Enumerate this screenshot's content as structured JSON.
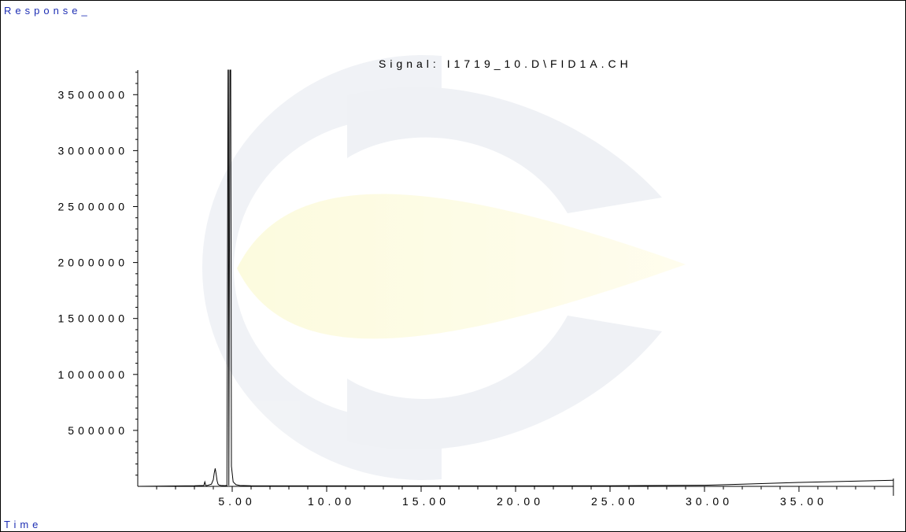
{
  "chart_data": {
    "type": "line",
    "title": "Signal: I1719_10.D\\FID1A.CH",
    "ylabel": "Response_",
    "xlabel": "Time",
    "xlim": [
      0.0,
      40.0
    ],
    "ylim": [
      0,
      3720000
    ],
    "y_ticks": [
      500000,
      1000000,
      1500000,
      2000000,
      2500000,
      3000000,
      3500000
    ],
    "y_tick_labels": [
      "500000",
      "1000000",
      "1500000",
      "2000000",
      "2500000",
      "3000000",
      "3500000"
    ],
    "x_ticks": [
      5,
      10,
      15,
      20,
      25,
      30,
      35
    ],
    "x_tick_labels": [
      "5.00",
      "10.00",
      "15.00",
      "20.00",
      "25.00",
      "30.00",
      "35.00"
    ],
    "grid": false,
    "series": [
      {
        "x": [
          0.0,
          3.0,
          3.5,
          3.55,
          3.6,
          3.62,
          3.9,
          4.0,
          4.05,
          4.1,
          4.15,
          4.2,
          4.25,
          4.3,
          4.4,
          4.6,
          4.72,
          4.78,
          4.8,
          4.82,
          4.88,
          4.92,
          4.96,
          5.05,
          5.2,
          5.4,
          6.0,
          8.0,
          15.0,
          25.0,
          30.0,
          32.0,
          35.0,
          40.0
        ],
        "y": [
          0,
          5000,
          8000,
          40000,
          10000,
          5000,
          20000,
          60000,
          120000,
          160000,
          110000,
          50000,
          20000,
          12000,
          8000,
          6000,
          8000,
          3720000,
          3720000,
          8000,
          3720000,
          3720000,
          180000,
          40000,
          15000,
          8000,
          5000,
          4000,
          4000,
          5000,
          10000,
          20000,
          35000,
          55000
        ]
      }
    ]
  }
}
